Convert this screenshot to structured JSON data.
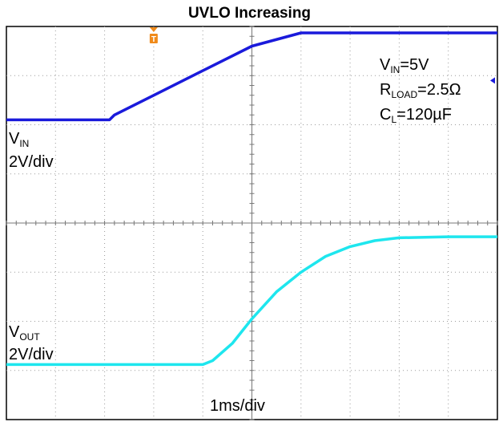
{
  "chart_data": {
    "type": "line",
    "title": "UVLO Increasing",
    "time_scale": "1ms/div",
    "x_divisions": 10,
    "y_divisions": 8,
    "xlim": [
      0,
      10
    ],
    "ylim": [
      0,
      8
    ],
    "annotations": {
      "vin_label": {
        "main": "V",
        "sub": "IN",
        "rest": "=5V"
      },
      "rload_label": {
        "main": "R",
        "sub": "LOAD",
        "rest": "=2.5Ω"
      },
      "cl_label": {
        "main": "C",
        "sub": "L",
        "rest": "=120µF"
      }
    },
    "series": [
      {
        "name_main": "V",
        "name_sub": "IN",
        "scale": "2V/div",
        "color": "#1a1adb",
        "x": [
          0,
          2.1,
          2.2,
          3,
          4,
          5,
          6,
          10
        ],
        "y": [
          6.1,
          6.1,
          6.2,
          6.6,
          7.1,
          7.6,
          7.87,
          7.87
        ]
      },
      {
        "name_main": "V",
        "name_sub": "OUT",
        "scale": "2V/div",
        "color": "#1ee6ee",
        "x": [
          0,
          4,
          4.2,
          4.6,
          5,
          5.5,
          6,
          6.5,
          7,
          7.5,
          8,
          9,
          10
        ],
        "y": [
          1.12,
          1.12,
          1.2,
          1.55,
          2.05,
          2.6,
          3.0,
          3.32,
          3.52,
          3.64,
          3.7,
          3.72,
          3.72
        ]
      }
    ],
    "trigger_marker": "T",
    "trigger_color": "#f08a1a"
  }
}
